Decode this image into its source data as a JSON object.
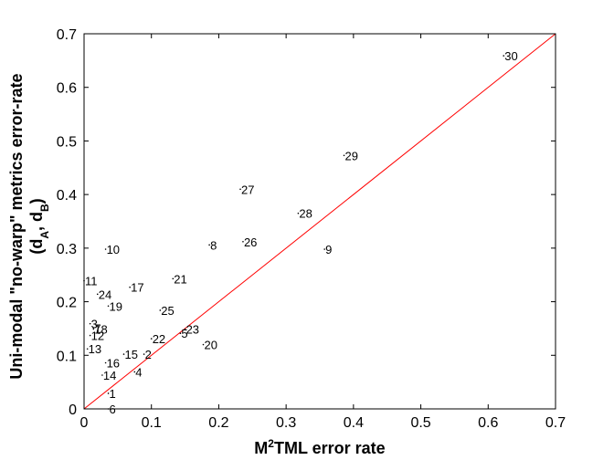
{
  "chart_data": {
    "type": "scatter",
    "title": "",
    "xlabel": {
      "base": "M",
      "sup": "2",
      "rest": "TML error rate"
    },
    "ylabel": {
      "line1": "Uni-modal \"no-warp\" metrics error-rate",
      "line2": {
        "open": "(d",
        "sub1": "A",
        "mid": ", d",
        "sub2": "B",
        "close": ")"
      }
    },
    "xlim": [
      0,
      0.7
    ],
    "ylim": [
      0,
      0.7
    ],
    "xticks": [
      "0",
      "0.1",
      "0.2",
      "0.3",
      "0.4",
      "0.5",
      "0.6",
      "0.7"
    ],
    "yticks": [
      "0",
      "0.1",
      "0.2",
      "0.3",
      "0.4",
      "0.5",
      "0.6",
      "0.7"
    ],
    "grid": false,
    "reference_line": {
      "from": [
        0,
        0
      ],
      "to": [
        0.7,
        0.7
      ],
      "color": "#ff0000"
    },
    "marker_color": "#000000",
    "points": [
      {
        "label": "1",
        "x": 0.036,
        "y": 0.029
      },
      {
        "label": "2",
        "x": 0.089,
        "y": 0.102
      },
      {
        "label": "3",
        "x": 0.009,
        "y": 0.159
      },
      {
        "label": "4",
        "x": 0.075,
        "y": 0.069
      },
      {
        "label": "5",
        "x": 0.143,
        "y": 0.141
      },
      {
        "label": "6",
        "x": 0.036,
        "y": 0.0
      },
      {
        "label": "7",
        "x": 0.014,
        "y": 0.151
      },
      {
        "label": "8",
        "x": 0.186,
        "y": 0.306
      },
      {
        "label": "9",
        "x": 0.357,
        "y": 0.298
      },
      {
        "label": "10",
        "x": 0.032,
        "y": 0.298
      },
      {
        "label": "11",
        "x": 0.0,
        "y": 0.239
      },
      {
        "label": "12",
        "x": 0.009,
        "y": 0.137
      },
      {
        "label": "13",
        "x": 0.005,
        "y": 0.112
      },
      {
        "label": "14",
        "x": 0.027,
        "y": 0.063
      },
      {
        "label": "15",
        "x": 0.059,
        "y": 0.102
      },
      {
        "label": "16",
        "x": 0.032,
        "y": 0.086
      },
      {
        "label": "17",
        "x": 0.068,
        "y": 0.227
      },
      {
        "label": "18",
        "x": 0.014,
        "y": 0.149
      },
      {
        "label": "19",
        "x": 0.036,
        "y": 0.192
      },
      {
        "label": "20",
        "x": 0.177,
        "y": 0.12
      },
      {
        "label": "21",
        "x": 0.132,
        "y": 0.243
      },
      {
        "label": "22",
        "x": 0.1,
        "y": 0.131
      },
      {
        "label": "23",
        "x": 0.15,
        "y": 0.149
      },
      {
        "label": "24",
        "x": 0.02,
        "y": 0.214
      },
      {
        "label": "25",
        "x": 0.113,
        "y": 0.184
      },
      {
        "label": "26",
        "x": 0.236,
        "y": 0.312
      },
      {
        "label": "27",
        "x": 0.232,
        "y": 0.41
      },
      {
        "label": "28",
        "x": 0.318,
        "y": 0.365
      },
      {
        "label": "29",
        "x": 0.386,
        "y": 0.473
      },
      {
        "label": "30",
        "x": 0.623,
        "y": 0.659
      }
    ]
  }
}
